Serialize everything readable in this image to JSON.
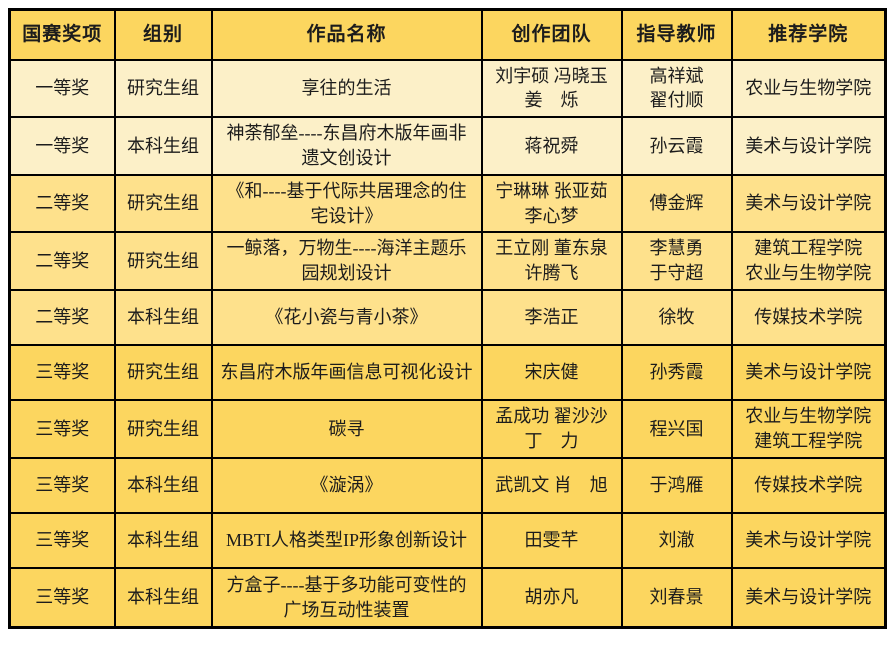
{
  "colors": {
    "header_bg": "#fcd65f",
    "first_prize_row_bg": "#fcf0c8",
    "second_prize_row_bg": "#fee18c",
    "third_prize_row_bg": "#fcd65f",
    "border": "#000000",
    "text": "#1c1c1c",
    "page_bg": "#ffffff"
  },
  "table": {
    "headers": [
      "国赛奖项",
      "组别",
      "作品名称",
      "创作团队",
      "指导教师",
      "推荐学院"
    ],
    "rows": [
      {
        "award": "一等奖",
        "group": "研究生组",
        "work": "享往的生活",
        "team": "刘宇硕 冯晓玉\n姜　烁",
        "teachers": "高祥斌\n翟付顺",
        "college": "农业与生物学院",
        "tier": "first"
      },
      {
        "award": "一等奖",
        "group": "本科生组",
        "work": "神荼郁垒----东昌府木版年画非遗文创设计",
        "team": "蒋祝舜",
        "teachers": "孙云霞",
        "college": "美术与设计学院",
        "tier": "first"
      },
      {
        "award": "二等奖",
        "group": "研究生组",
        "work": "《和----基于代际共居理念的住宅设计》",
        "team": "宁琳琳 张亚茹\n李心梦",
        "teachers": "傅金辉",
        "college": "美术与设计学院",
        "tier": "second"
      },
      {
        "award": "二等奖",
        "group": "研究生组",
        "work": "一鲸落，万物生----海洋主题乐园规划设计",
        "team": "王立刚 董东泉\n许腾飞",
        "teachers": "李慧勇\n于守超",
        "college": "建筑工程学院\n农业与生物学院",
        "tier": "second"
      },
      {
        "award": "二等奖",
        "group": "本科生组",
        "work": "《花小瓷与青小茶》",
        "team": "李浩正",
        "teachers": "徐牧",
        "college": "传媒技术学院",
        "tier": "second"
      },
      {
        "award": "三等奖",
        "group": "研究生组",
        "work": "东昌府木版年画信息可视化设计",
        "team": "宋庆健",
        "teachers": "孙秀霞",
        "college": "美术与设计学院",
        "tier": "third"
      },
      {
        "award": "三等奖",
        "group": "研究生组",
        "work": "碳寻",
        "team": "孟成功 翟沙沙\n丁　力",
        "teachers": "程兴国",
        "college": "农业与生物学院\n建筑工程学院",
        "tier": "third"
      },
      {
        "award": "三等奖",
        "group": "本科生组",
        "work": "《漩涡》",
        "team": "武凯文 肖　旭",
        "teachers": "于鸿雁",
        "college": "传媒技术学院",
        "tier": "third"
      },
      {
        "award": "三等奖",
        "group": "本科生组",
        "work": "MBTI人格类型IP形象创新设计",
        "team": "田雯芊",
        "teachers": "刘澈",
        "college": "美术与设计学院",
        "tier": "third"
      },
      {
        "award": "三等奖",
        "group": "本科生组",
        "work": "方盒子----基于多功能可变性的广场互动性装置",
        "team": "胡亦凡",
        "teachers": "刘春景",
        "college": "美术与设计学院",
        "tier": "third"
      }
    ]
  }
}
